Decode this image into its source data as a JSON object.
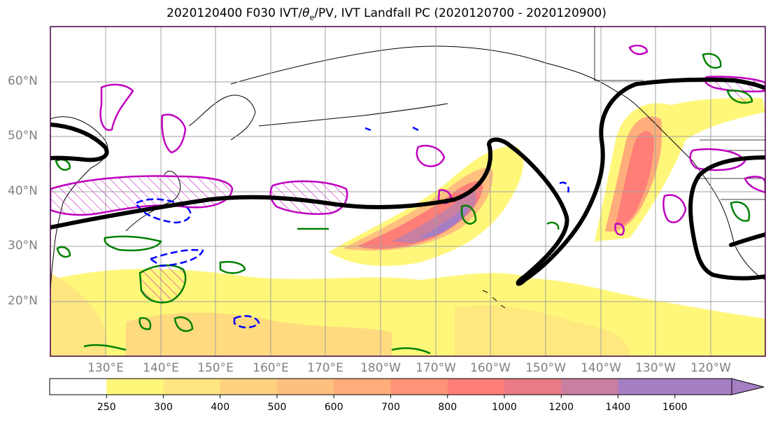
{
  "title": {
    "prefix": "2020120400 F030 IVT/",
    "theta": "θ",
    "sub": "e",
    "suffix": "/PV, IVT Landfall PC (2020120700 - 2020120900)"
  },
  "lat_labels": [
    "60°N",
    "50°N",
    "40°N",
    "30°N",
    "20°N"
  ],
  "lon_labels": [
    "130°E",
    "140°E",
    "150°E",
    "160°E",
    "170°E",
    "180°W",
    "170°W",
    "160°W",
    "150°W",
    "140°W",
    "130°W",
    "120°W"
  ],
  "colorbar": {
    "ticks": [
      "250",
      "300",
      "400",
      "500",
      "600",
      "700",
      "800",
      "1000",
      "1200",
      "1400",
      "1600"
    ],
    "colors": [
      "#ffffff",
      "#fff77a",
      "#ffe680",
      "#ffd27f",
      "#ffbf7f",
      "#ffad7a",
      "#ff9378",
      "#ff7e78",
      "#ea7a86",
      "#c97fa0",
      "#a67ec4"
    ]
  },
  "legend_colors": {
    "ivt_contour": "#000000",
    "pv_positive": "#c000c0",
    "pv_negative": "#0000ff",
    "theta_e": "#008000"
  }
}
